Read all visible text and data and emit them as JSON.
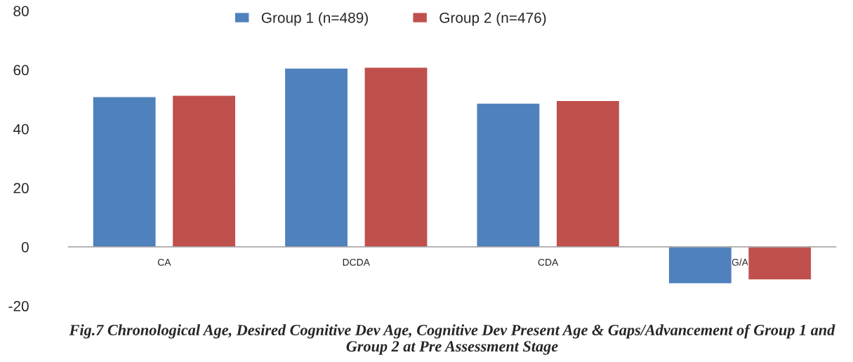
{
  "chart_data": {
    "type": "bar",
    "categories": [
      "CA",
      "DCDA",
      "CDA",
      "G/A"
    ],
    "series": [
      {
        "name": "Group 1 (n=489)",
        "color": "#4f81bd",
        "values": [
          50.9,
          60.6,
          48.7,
          -12.5
        ]
      },
      {
        "name": "Group 2 (n=476)",
        "color": "#c0504d",
        "values": [
          51.4,
          60.9,
          49.6,
          -11.2
        ]
      }
    ],
    "ylim": [
      -20,
      80
    ],
    "yticks": [
      -20,
      0,
      20,
      40,
      60,
      80
    ],
    "grid": false,
    "legend": "top",
    "annotations": [
      "Fig.7 Chronological Age, Desired Cognitive Dev Age, Cognitive Dev Present Age & Gaps/Advancement of Group 1 and Group 2 at Pre Assessment Stage"
    ]
  }
}
